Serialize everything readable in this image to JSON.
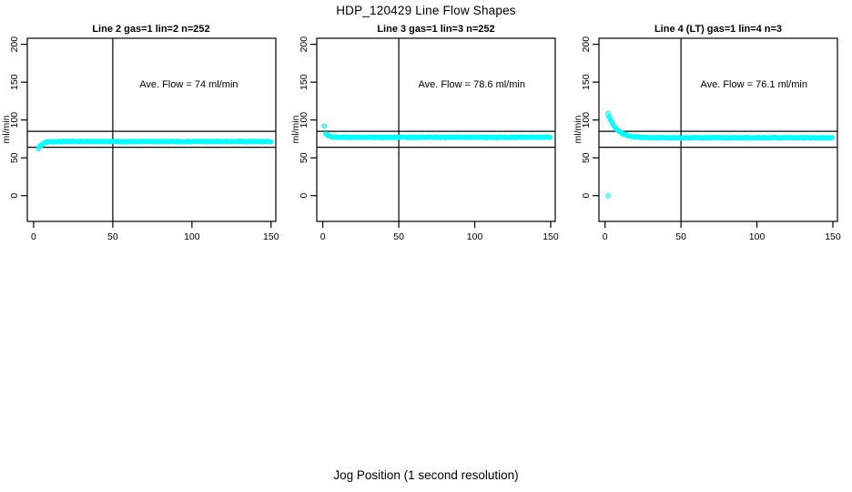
{
  "figure": {
    "title": "HDP_120429  Line Flow Shapes",
    "xlabel": "Jog Position (1 second resolution)",
    "background_color": "#ffffff",
    "point_color": "#00ffff",
    "line_color": "#000000"
  },
  "chart_data": [
    {
      "type": "scatter",
      "title": "Line 2 gas=1 lin=2 n=252",
      "ylabel": "ml/min",
      "annotation": "Ave. Flow =  74  ml/min",
      "ave_flow": 74,
      "n": 252,
      "x_ticks": [
        0,
        50,
        100,
        150
      ],
      "y_ticks": [
        0,
        50,
        100,
        150,
        200
      ],
      "xlim": [
        -4,
        153
      ],
      "ylim": [
        -34,
        208
      ],
      "vline_x": 50,
      "hlines": [
        85,
        64
      ],
      "annotation_xy": [
        98,
        148
      ],
      "series": {
        "shape": "rises from ~62 at start to flat plateau ~71.5 ml/min",
        "x_start": 3,
        "x_end": 150,
        "x_step": 0.6,
        "plateau": 71.5,
        "start_amplitude": -9.5,
        "decay_tau": 2.5,
        "noise": 0.55,
        "outliers": []
      }
    },
    {
      "type": "scatter",
      "title": "Line 3 gas=1 lin=3 n=252",
      "ylabel": "ml/min",
      "annotation": "Ave. Flow =  78.6  ml/min",
      "ave_flow": 78.6,
      "n": 252,
      "x_ticks": [
        0,
        50,
        100,
        150
      ],
      "y_ticks": [
        0,
        50,
        100,
        150,
        200
      ],
      "xlim": [
        -4,
        153
      ],
      "ylim": [
        -34,
        208
      ],
      "vline_x": 50,
      "hlines": [
        85,
        64
      ],
      "annotation_xy": [
        98,
        148
      ],
      "series": {
        "shape": "single high point ~92 then flat plateau ~77 ml/min",
        "x_start": 2,
        "x_end": 150,
        "x_step": 0.6,
        "plateau": 77.2,
        "start_amplitude": 5,
        "decay_tau": 2,
        "noise": 0.55,
        "outliers": [
          [
            1,
            92
          ]
        ]
      }
    },
    {
      "type": "scatter",
      "title": "Line 4 (LT) gas=1 lin=4 n=3",
      "ylabel": "ml/min",
      "annotation": "Ave. Flow =  76.1  ml/min",
      "ave_flow": 76.1,
      "n": 3,
      "x_ticks": [
        0,
        50,
        100,
        150
      ],
      "y_ticks": [
        0,
        50,
        100,
        150,
        200
      ],
      "xlim": [
        -4,
        153
      ],
      "ylim": [
        -34,
        208
      ],
      "vline_x": 50,
      "hlines": [
        85,
        64
      ],
      "annotation_xy": [
        98,
        148
      ],
      "series": {
        "shape": "exponential decay from ~108 down to flat plateau ~76.5 ml/min, one outlier at 0",
        "x_start": 2,
        "x_end": 150,
        "x_step": 0.6,
        "plateau": 76.5,
        "start_amplitude": 32,
        "decay_tau": 5.5,
        "noise": 0.6,
        "outliers": [
          [
            2,
            0
          ]
        ]
      }
    }
  ]
}
